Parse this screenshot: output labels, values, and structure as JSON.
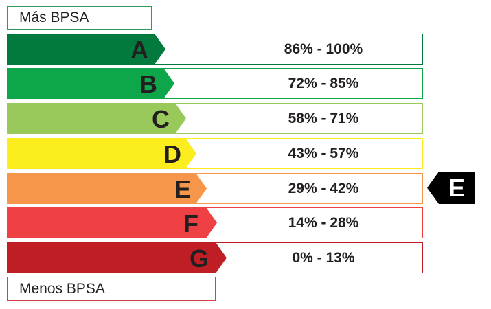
{
  "top_label": "Más BPSA",
  "bottom_label": "Menos BPSA",
  "rows": [
    {
      "letter": "A",
      "range": "86% - 100%",
      "color": "#027a3e",
      "border": "#027a3e"
    },
    {
      "letter": "B",
      "range": "72% - 85%",
      "color": "#0ea64a",
      "border": "#0ea64a"
    },
    {
      "letter": "C",
      "range": "58% - 71%",
      "color": "#98c95a",
      "border": "#98c95a"
    },
    {
      "letter": "D",
      "range": "43% - 57%",
      "color": "#fced1e",
      "border": "#fced1e"
    },
    {
      "letter": "E",
      "range": "29% - 42%",
      "color": "#f6964a",
      "border": "#f6964a"
    },
    {
      "letter": "F",
      "range": "14% - 28%",
      "color": "#ef4144",
      "border": "#ef4144"
    },
    {
      "letter": "G",
      "range": "0% - 13%",
      "color": "#bf1e24",
      "border": "#bf1e24"
    }
  ],
  "current_rating": "E",
  "marker_color": "#000000"
}
